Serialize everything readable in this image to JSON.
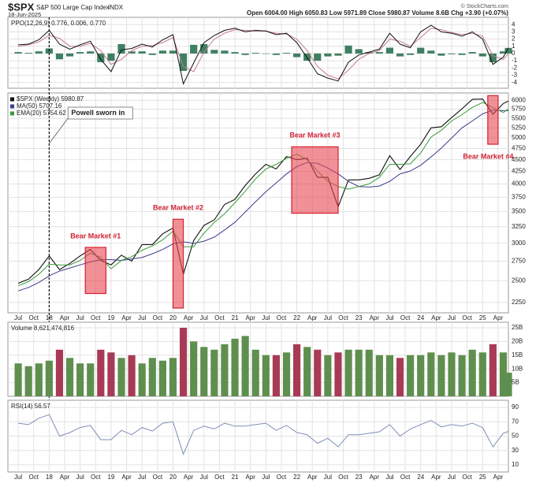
{
  "header": {
    "symbol": "$SPX",
    "name": "S&P 500 Large Cap Index",
    "exchange": "INDX",
    "date": "18-Jun-2025",
    "quote": "Open 6004.00 High 6050.83 Low 5971.89 Close 5980.87 Volume 8.6B Chg +3.90 (+0.07%)",
    "credit": "© StockCharts.com"
  },
  "chart_data": [
    {
      "type": "line",
      "title": "PPO(12,26,9) 0.776, 0.006, 0.770",
      "x": [
        "2017-07",
        "2017-09",
        "2017-11",
        "2018-01",
        "2018-03",
        "2018-05",
        "2018-07",
        "2018-09",
        "2018-11",
        "2019-01",
        "2019-03",
        "2019-05",
        "2019-07",
        "2019-09",
        "2019-11",
        "2020-01",
        "2020-03",
        "2020-05",
        "2020-07",
        "2020-09",
        "2020-11",
        "2021-01",
        "2021-03",
        "2021-05",
        "2021-07",
        "2021-09",
        "2021-11",
        "2022-01",
        "2022-03",
        "2022-05",
        "2022-07",
        "2022-09",
        "2022-11",
        "2023-01",
        "2023-03",
        "2023-05",
        "2023-07",
        "2023-09",
        "2023-11",
        "2024-01",
        "2024-03",
        "2024-05",
        "2024-07",
        "2024-09",
        "2024-11",
        "2025-01",
        "2025-03",
        "2025-05",
        "2025-06"
      ],
      "xlim": [
        "2017-05",
        "2025-06"
      ],
      "ylim": [
        -4.8,
        5.0
      ],
      "yticks": [
        4,
        3,
        2,
        1,
        0,
        -1,
        -2,
        -3,
        -4
      ],
      "grid": true,
      "series": [
        {
          "type": "bar",
          "color": "#3f7f62",
          "values": [
            0.2,
            0.1,
            0.3,
            0.7,
            -0.8,
            -0.4,
            0.2,
            0.3,
            -1.2,
            -1.0,
            1.3,
            0.3,
            0.3,
            -0.2,
            0.4,
            0.4,
            -2.4,
            1.2,
            1.3,
            0.5,
            0.4,
            0.2,
            -0.2,
            0.1,
            0.0,
            -0.2,
            0.1,
            -0.5,
            -1.0,
            -1.0,
            -0.4,
            -0.3,
            1.1,
            0.6,
            0.2,
            0.2,
            0.8,
            -0.4,
            -0.2,
            0.8,
            0.4,
            -0.3,
            -0.1,
            -0.2,
            0.2,
            -0.4,
            -1.2,
            0.3,
            0.77
          ]
        },
        {
          "type": "line",
          "color": "#c77a8c",
          "values": [
            1.0,
            1.2,
            1.6,
            2.5,
            2.1,
            1.0,
            1.0,
            1.4,
            0.4,
            -1.5,
            -0.8,
            0.4,
            1.0,
            1.1,
            1.5,
            2.2,
            -1.8,
            -2.5,
            0.2,
            2.0,
            2.8,
            3.3,
            3.2,
            3.1,
            3.1,
            2.8,
            2.7,
            2.0,
            0.4,
            -1.8,
            -3.0,
            -3.5,
            -2.3,
            -0.8,
            0.0,
            0.4,
            2.0,
            1.7,
            1.0,
            2.2,
            3.5,
            3.3,
            2.9,
            2.6,
            2.8,
            2.4,
            -0.3,
            -0.8,
            0.006
          ]
        },
        {
          "type": "line",
          "color": "#111111",
          "values": [
            1.2,
            1.3,
            1.9,
            3.2,
            1.3,
            0.6,
            1.2,
            1.7,
            -0.8,
            -2.5,
            0.5,
            0.7,
            1.3,
            0.9,
            1.9,
            2.6,
            -4.2,
            -1.3,
            1.5,
            2.5,
            3.2,
            3.5,
            3.0,
            3.2,
            3.1,
            2.6,
            2.8,
            1.5,
            -0.6,
            -2.8,
            -3.4,
            -3.8,
            -1.2,
            -0.2,
            0.2,
            0.6,
            2.8,
            1.3,
            0.8,
            3.0,
            3.9,
            3.0,
            2.8,
            2.4,
            3.0,
            2.0,
            -1.5,
            -0.5,
            0.776
          ]
        }
      ]
    },
    {
      "type": "line",
      "log_scale": true,
      "x": [
        "2017-07",
        "2017-09",
        "2017-11",
        "2018-01",
        "2018-03",
        "2018-05",
        "2018-07",
        "2018-09",
        "2018-11",
        "2019-01",
        "2019-03",
        "2019-05",
        "2019-07",
        "2019-09",
        "2019-11",
        "2020-01",
        "2020-03",
        "2020-05",
        "2020-07",
        "2020-09",
        "2020-11",
        "2021-01",
        "2021-03",
        "2021-05",
        "2021-07",
        "2021-09",
        "2021-11",
        "2022-01",
        "2022-03",
        "2022-05",
        "2022-07",
        "2022-09",
        "2022-11",
        "2023-01",
        "2023-03",
        "2023-05",
        "2023-07",
        "2023-09",
        "2023-11",
        "2024-01",
        "2024-03",
        "2024-05",
        "2024-07",
        "2024-09",
        "2024-11",
        "2025-01",
        "2025-03",
        "2025-05",
        "2025-06"
      ],
      "xlim": [
        "2017-05",
        "2025-06"
      ],
      "ylim": [
        2140,
        6220
      ],
      "yticks": [
        2250,
        2500,
        2750,
        3000,
        3250,
        3500,
        3750,
        4000,
        4250,
        4500,
        4750,
        5000,
        5250,
        5500,
        5750,
        6000
      ],
      "grid": true,
      "xticks": [
        {
          "value": "2017-07",
          "label": "Jul"
        },
        {
          "value": "2017-10",
          "label": "Oct"
        },
        {
          "value": "2018-01",
          "label": "18"
        },
        {
          "value": "2018-04",
          "label": "Apr"
        },
        {
          "value": "2018-07",
          "label": "Jul"
        },
        {
          "value": "2018-10",
          "label": "Oct"
        },
        {
          "value": "2019-01",
          "label": "19"
        },
        {
          "value": "2019-04",
          "label": "Apr"
        },
        {
          "value": "2019-07",
          "label": "Jul"
        },
        {
          "value": "2019-10",
          "label": "Oct"
        },
        {
          "value": "2020-01",
          "label": "20"
        },
        {
          "value": "2020-04",
          "label": "Apr"
        },
        {
          "value": "2020-07",
          "label": "Jul"
        },
        {
          "value": "2020-10",
          "label": "Oct"
        },
        {
          "value": "2021-01",
          "label": "21"
        },
        {
          "value": "2021-04",
          "label": "Apr"
        },
        {
          "value": "2021-07",
          "label": "Jul"
        },
        {
          "value": "2021-10",
          "label": "Oct"
        },
        {
          "value": "2022-01",
          "label": "22"
        },
        {
          "value": "2022-04",
          "label": "Apr"
        },
        {
          "value": "2022-07",
          "label": "Jul"
        },
        {
          "value": "2022-10",
          "label": "Oct"
        },
        {
          "value": "2023-01",
          "label": "23"
        },
        {
          "value": "2023-04",
          "label": "Apr"
        },
        {
          "value": "2023-07",
          "label": "Jul"
        },
        {
          "value": "2023-10",
          "label": "Oct"
        },
        {
          "value": "2024-01",
          "label": "24"
        },
        {
          "value": "2024-04",
          "label": "Apr"
        },
        {
          "value": "2024-07",
          "label": "Jul"
        },
        {
          "value": "2024-10",
          "label": "Oct"
        },
        {
          "value": "2025-01",
          "label": "25"
        },
        {
          "value": "2025-04",
          "label": "Apr"
        }
      ],
      "series": [
        {
          "name": "$SPX (Weekly) 5980.87",
          "color": "#111111",
          "values": [
            2470,
            2520,
            2640,
            2820,
            2640,
            2720,
            2820,
            2910,
            2760,
            2700,
            2830,
            2750,
            2980,
            2980,
            3140,
            3230,
            2580,
            3040,
            3270,
            3360,
            3620,
            3710,
            3970,
            4200,
            4400,
            4300,
            4570,
            4500,
            4530,
            4130,
            4130,
            3580,
            4080,
            4080,
            4110,
            4180,
            4590,
            4290,
            4570,
            4850,
            5250,
            5280,
            5520,
            5760,
            6030,
            6040,
            5610,
            5910,
            5980.87
          ]
        },
        {
          "name": "MA(50) 5707.16",
          "color": "#3c3c8c",
          "values": [
            2380,
            2420,
            2480,
            2560,
            2620,
            2660,
            2700,
            2740,
            2770,
            2770,
            2760,
            2780,
            2800,
            2850,
            2910,
            2990,
            3020,
            3000,
            3030,
            3090,
            3200,
            3320,
            3490,
            3670,
            3850,
            4020,
            4200,
            4350,
            4440,
            4420,
            4320,
            4200,
            4050,
            3950,
            3940,
            3960,
            4050,
            4200,
            4260,
            4380,
            4560,
            4760,
            5000,
            5250,
            5430,
            5620,
            5720,
            5710,
            5707.16
          ]
        },
        {
          "name": "EMA(20) 5754.62",
          "color": "#3a9a3a",
          "values": [
            2440,
            2490,
            2580,
            2710,
            2700,
            2700,
            2760,
            2860,
            2800,
            2650,
            2760,
            2810,
            2900,
            2960,
            3050,
            3180,
            2950,
            2950,
            3150,
            3320,
            3460,
            3650,
            3860,
            4100,
            4300,
            4400,
            4530,
            4620,
            4500,
            4260,
            4050,
            3950,
            3900,
            3950,
            4000,
            4130,
            4400,
            4400,
            4410,
            4650,
            5020,
            5190,
            5430,
            5600,
            5800,
            5940,
            5790,
            5660,
            5754.62
          ]
        }
      ],
      "annotations": [
        {
          "label": "Powell sworn in",
          "x": "2018-01"
        },
        {
          "label": "Bear Market #1",
          "x": [
            "2018-08",
            "2018-12"
          ],
          "y": [
            2350,
            2940
          ]
        },
        {
          "label": "Bear Market #2",
          "x": [
            "2020-01",
            "2020-03"
          ],
          "y": [
            2190,
            3370
          ]
        },
        {
          "label": "Bear Market #3",
          "x": [
            "2021-12",
            "2022-09"
          ],
          "y": [
            3470,
            4790
          ]
        },
        {
          "label": "Bear Market #4",
          "x": [
            "2025-02",
            "2025-04"
          ],
          "y": [
            4850,
            6140
          ]
        }
      ]
    },
    {
      "type": "bar",
      "title": "Volume 8,621,474,816",
      "up_color": "#5f8f4e",
      "down_color": "#a83a55",
      "x": [
        "2017-07",
        "2017-09",
        "2017-11",
        "2018-01",
        "2018-03",
        "2018-05",
        "2018-07",
        "2018-09",
        "2018-11",
        "2019-01",
        "2019-03",
        "2019-05",
        "2019-07",
        "2019-09",
        "2019-11",
        "2020-01",
        "2020-03",
        "2020-05",
        "2020-07",
        "2020-09",
        "2020-11",
        "2021-01",
        "2021-03",
        "2021-05",
        "2021-07",
        "2021-09",
        "2021-11",
        "2022-01",
        "2022-03",
        "2022-05",
        "2022-07",
        "2022-09",
        "2022-11",
        "2023-01",
        "2023-03",
        "2023-05",
        "2023-07",
        "2023-09",
        "2023-11",
        "2024-01",
        "2024-03",
        "2024-05",
        "2024-07",
        "2024-09",
        "2024-11",
        "2025-01",
        "2025-03",
        "2025-05",
        "2025-06"
      ],
      "xlim": [
        "2017-05",
        "2025-06"
      ],
      "ylim": [
        0,
        27
      ],
      "grid": true,
      "yticks": [
        {
          "value": 25,
          "label": "25B"
        },
        {
          "value": 20,
          "label": "20B"
        },
        {
          "value": 15,
          "label": "15B"
        },
        {
          "value": 10,
          "label": "10B"
        },
        {
          "value": 5,
          "label": "5B"
        }
      ],
      "values": [
        12,
        11,
        12,
        13,
        17,
        14,
        12,
        12,
        17,
        16,
        14,
        15,
        12,
        14,
        13,
        14,
        25,
        20,
        18,
        17,
        19,
        21,
        22,
        17,
        15,
        15,
        16,
        19,
        18,
        17,
        15,
        16,
        17,
        17,
        17,
        15,
        15,
        14,
        15,
        15,
        16,
        15,
        16,
        15,
        17,
        16,
        19,
        16,
        8.621474816
      ]
    },
    {
      "type": "line",
      "title": "RSI(14) 56.57",
      "x": [
        "2017-07",
        "2017-09",
        "2017-11",
        "2018-01",
        "2018-03",
        "2018-05",
        "2018-07",
        "2018-09",
        "2018-11",
        "2019-01",
        "2019-03",
        "2019-05",
        "2019-07",
        "2019-09",
        "2019-11",
        "2020-01",
        "2020-03",
        "2020-05",
        "2020-07",
        "2020-09",
        "2020-11",
        "2021-01",
        "2021-03",
        "2021-05",
        "2021-07",
        "2021-09",
        "2021-11",
        "2022-01",
        "2022-03",
        "2022-05",
        "2022-07",
        "2022-09",
        "2022-11",
        "2023-01",
        "2023-03",
        "2023-05",
        "2023-07",
        "2023-09",
        "2023-11",
        "2024-01",
        "2024-03",
        "2024-05",
        "2024-07",
        "2024-09",
        "2024-11",
        "2025-01",
        "2025-03",
        "2025-05",
        "2025-06"
      ],
      "xlim": [
        "2017-05",
        "2025-06"
      ],
      "ylim": [
        0,
        100
      ],
      "yticks": [
        90,
        70,
        50,
        30,
        10
      ],
      "grid": true,
      "series": [
        {
          "color": "#7d8fb5",
          "values": [
            68,
            66,
            75,
            80,
            50,
            55,
            62,
            65,
            45,
            45,
            58,
            52,
            62,
            57,
            68,
            70,
            25,
            58,
            64,
            60,
            68,
            64,
            64,
            66,
            68,
            58,
            65,
            55,
            52,
            40,
            47,
            35,
            52,
            52,
            54,
            56,
            66,
            50,
            60,
            66,
            72,
            63,
            66,
            64,
            68,
            62,
            35,
            54,
            56.57
          ]
        }
      ]
    }
  ]
}
